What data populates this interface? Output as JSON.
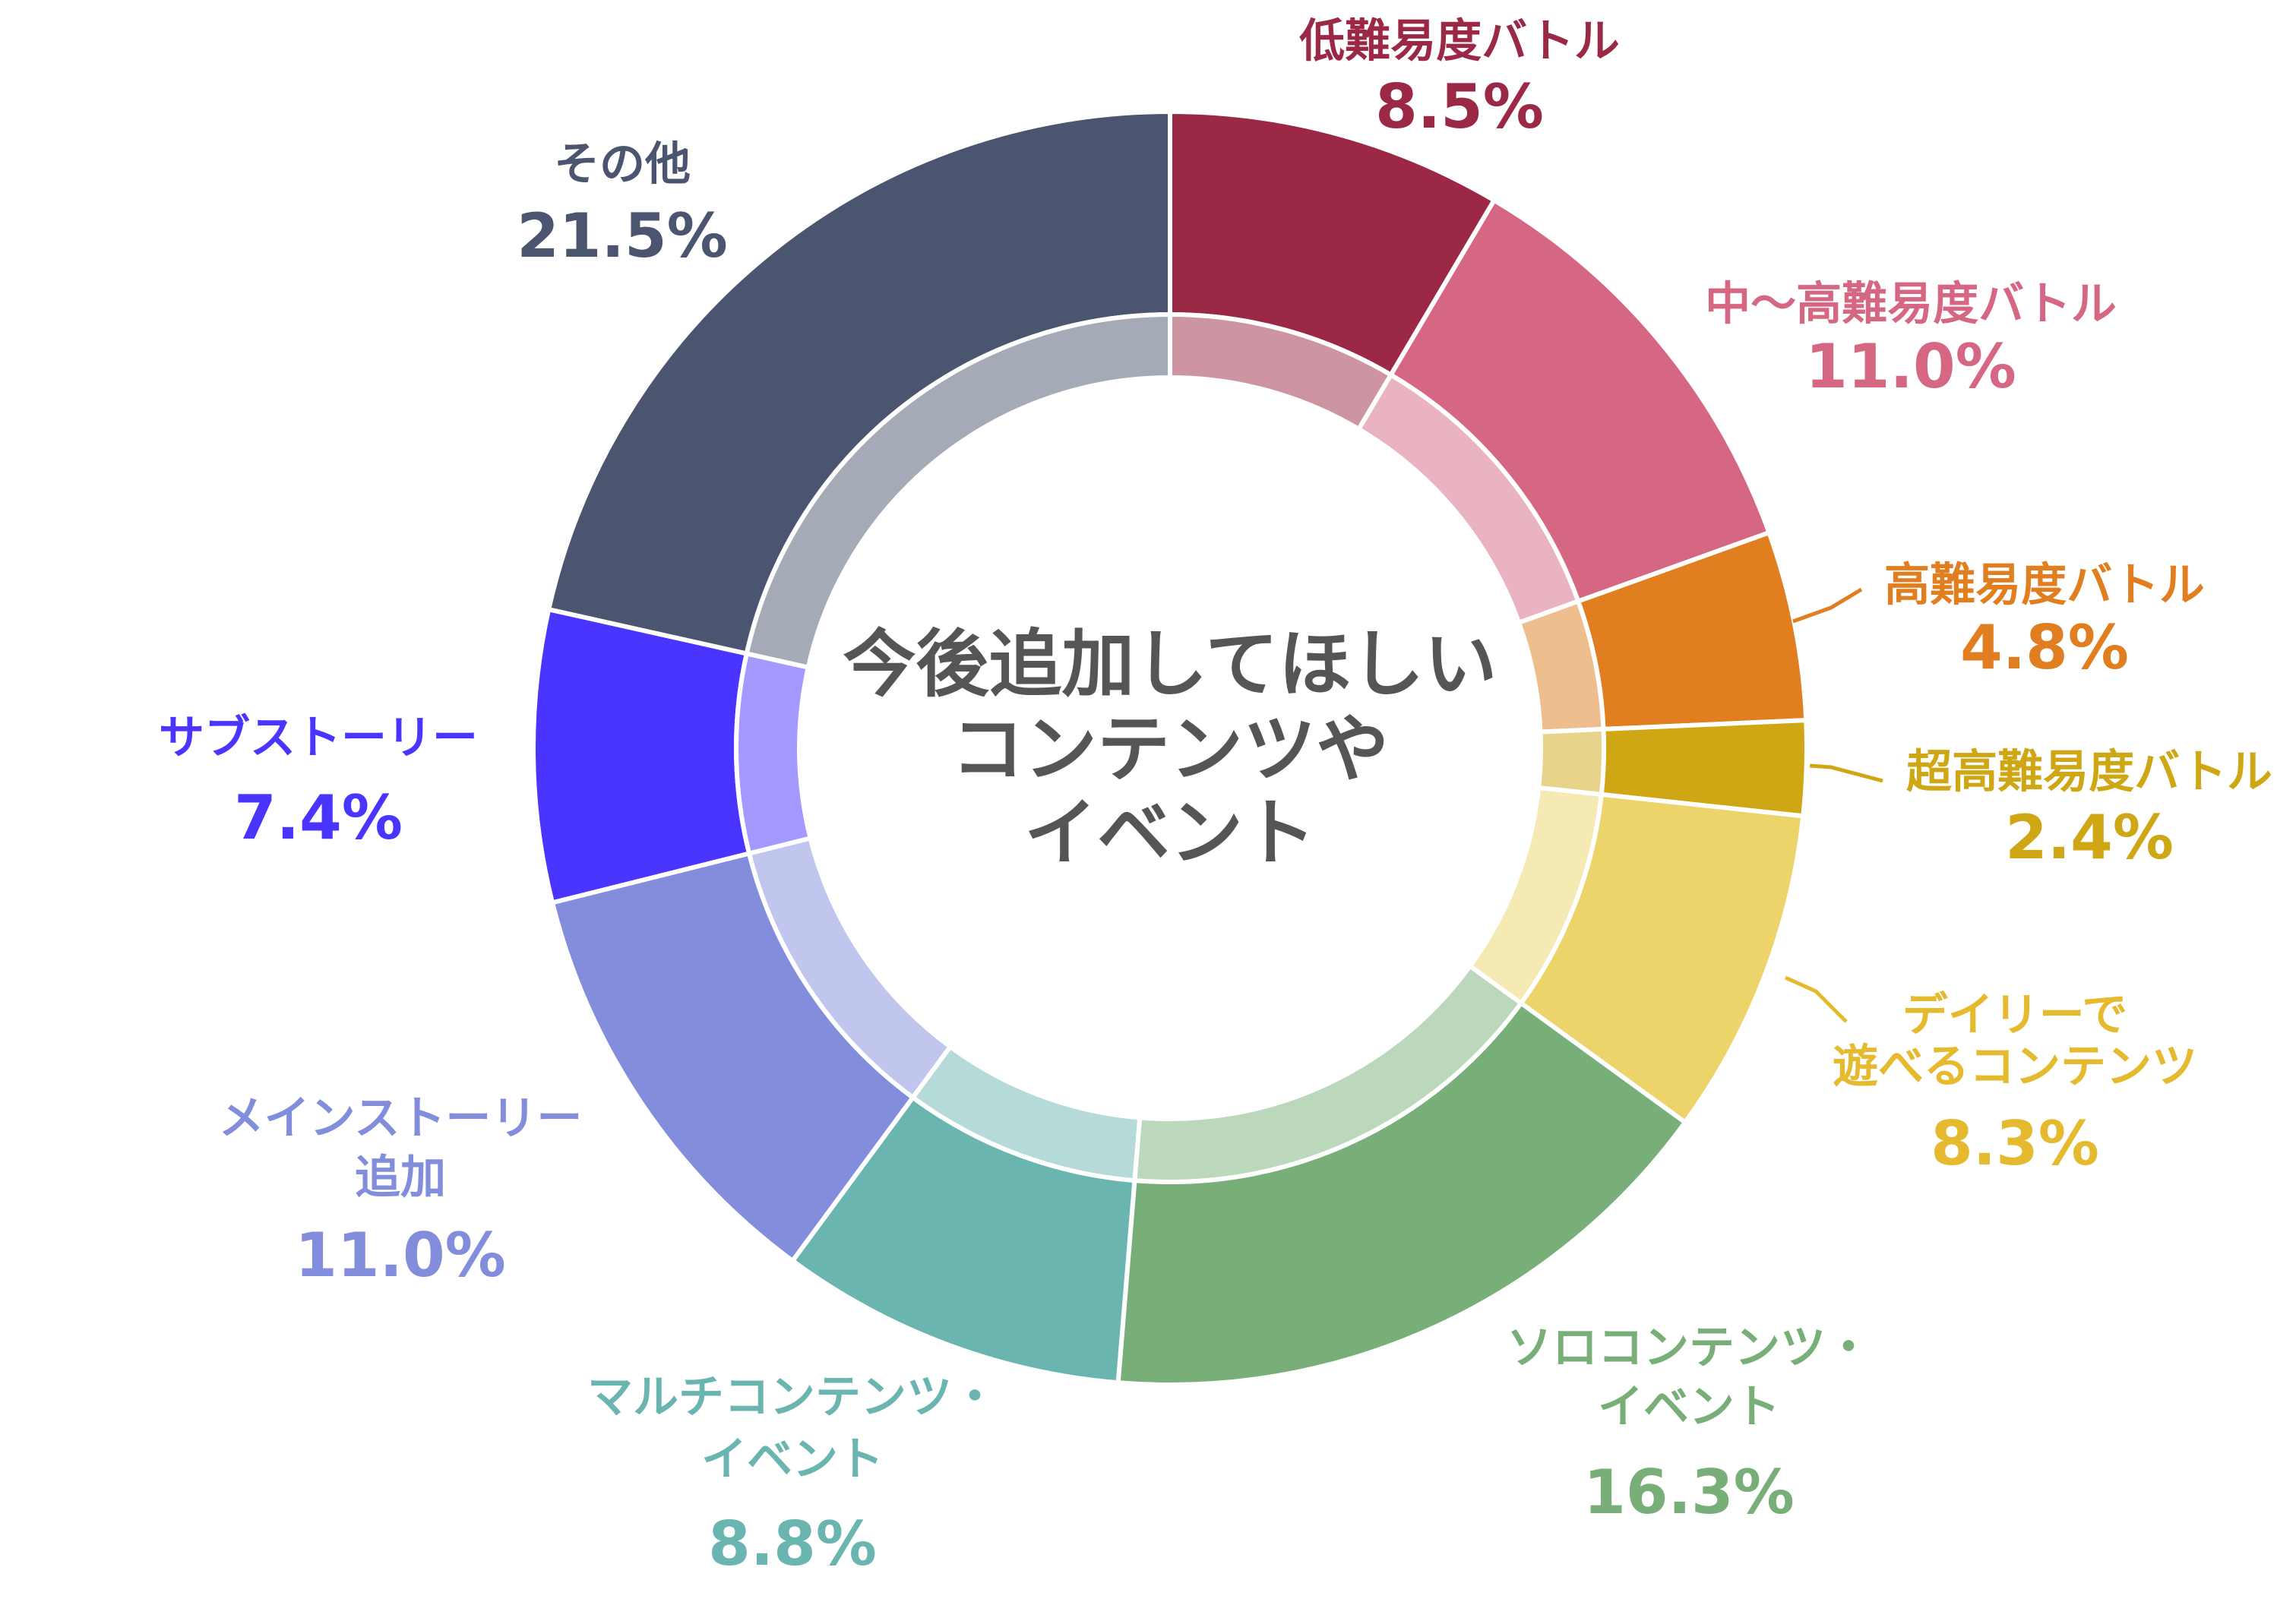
{
  "chart_data": {
    "type": "pie",
    "subtype": "donut",
    "title": "今後追加してほしいコンテンツやイベント",
    "title_lines": [
      "今後追加してほしい",
      "コンテンツや",
      "イベント"
    ],
    "direction": "clockwise from top",
    "unit": "%",
    "slices": [
      {
        "label_lines": [
          "低難易度バトル"
        ],
        "value": 8.5,
        "value_label": "8.5%",
        "color": "#9B2946"
      },
      {
        "label_lines": [
          "中〜高難易度バトル"
        ],
        "value": 11.0,
        "value_label": "11.0%",
        "color": "#D66783"
      },
      {
        "label_lines": [
          "高難易度バトル"
        ],
        "value": 4.8,
        "value_label": "4.8%",
        "color": "#E07E20"
      },
      {
        "label_lines": [
          "超高難易度バトル"
        ],
        "value": 2.4,
        "value_label": "2.4%",
        "color": "#CFA715"
      },
      {
        "label_lines": [
          "デイリーで",
          "遊べるコンテンツ"
        ],
        "value": 8.3,
        "value_label": "8.3%",
        "color": "#ECD36A",
        "text_color": "#E5BA2E"
      },
      {
        "label_lines": [
          "ソロコンテンツ・",
          "イベント"
        ],
        "value": 16.3,
        "value_label": "16.3%",
        "color": "#78AF79"
      },
      {
        "label_lines": [
          "マルチコンテンツ・",
          "イベント"
        ],
        "value": 8.8,
        "value_label": "8.8%",
        "color": "#6BB5B1"
      },
      {
        "label_lines": [
          "メインストーリー",
          "追加"
        ],
        "value": 11.0,
        "value_label": "11.0%",
        "color": "#828DDC"
      },
      {
        "label_lines": [
          "サブストーリー"
        ],
        "value": 7.4,
        "value_label": "7.4%",
        "color": "#4A34FF"
      },
      {
        "label_lines": [
          "その他"
        ],
        "value": 21.5,
        "value_label": "21.5%",
        "color": "#4B556F"
      }
    ]
  }
}
